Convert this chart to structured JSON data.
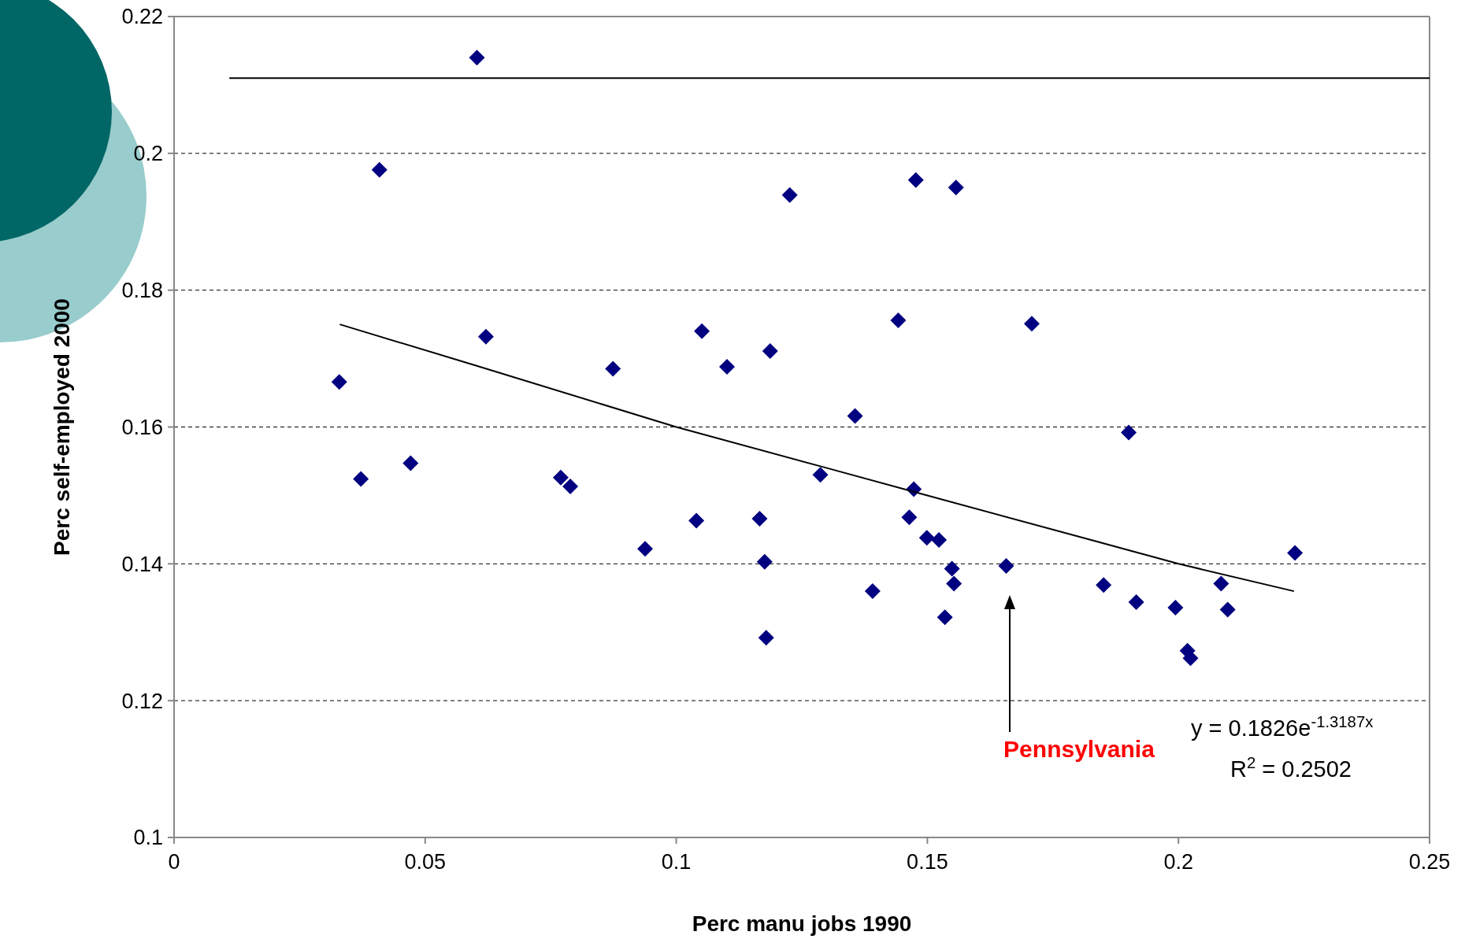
{
  "chart_data": {
    "type": "scatter",
    "xlabel": "Perc manu jobs 1990",
    "ylabel": "Perc self-employed 2000",
    "xlim": [
      0,
      0.25
    ],
    "xticks": [
      0,
      0.05,
      0.1,
      0.15,
      0.2,
      0.25
    ],
    "ylim": [
      0.1,
      0.22
    ],
    "yticks": [
      0.1,
      0.12,
      0.14,
      0.16,
      0.18,
      0.2,
      0.22
    ],
    "grid": "y",
    "series": [
      {
        "marker": "diamond",
        "color": "#000080",
        "x": [
          0.0329,
          0.0372,
          0.0409,
          0.0471,
          0.0603,
          0.0621,
          0.077,
          0.0789,
          0.0874,
          0.0938,
          0.104,
          0.1051,
          0.1101,
          0.1166,
          0.1176,
          0.1179,
          0.1187,
          0.1226,
          0.1287,
          0.1356,
          0.1391,
          0.1442,
          0.1464,
          0.1473,
          0.1477,
          0.1499,
          0.1523,
          0.1535,
          0.1549,
          0.1553,
          0.1557,
          0.1657,
          0.1708,
          0.1851,
          0.1901,
          0.1916,
          0.1994,
          0.2018,
          0.2024,
          0.2085,
          0.2098,
          0.2232
        ],
        "values": [
          0.1666,
          0.1524,
          0.1976,
          0.1547,
          0.214,
          0.1732,
          0.1526,
          0.1513,
          0.1685,
          0.1422,
          0.1463,
          0.174,
          0.1688,
          0.1466,
          0.1403,
          0.1292,
          0.1711,
          0.1939,
          0.153,
          0.1616,
          0.136,
          0.1756,
          0.1468,
          0.1509,
          0.1961,
          0.1438,
          0.1435,
          0.1322,
          0.1393,
          0.1371,
          0.195,
          0.1397,
          0.1751,
          0.1369,
          0.1592,
          0.1344,
          0.1336,
          0.1273,
          0.1262,
          0.1371,
          0.1333,
          0.1416
        ]
      },
      {
        "type": "line",
        "color": "#000000",
        "x": [
          0.033,
          0.06,
          0.1,
          0.13,
          0.15,
          0.18,
          0.2,
          0.223
        ],
        "values": [
          0.175,
          0.169,
          0.16,
          0.154,
          0.15,
          0.144,
          0.14,
          0.136
        ]
      },
      {
        "type": "line",
        "color": "#000000",
        "x": [
          0.011,
          0.25
        ],
        "values": [
          0.211,
          0.211
        ]
      }
    ],
    "annotations": [
      "Pennsylvania",
      "y = 0.1826e$^{-1.3187x}$",
      "R$^{2}$ = 0.2502"
    ]
  }
}
